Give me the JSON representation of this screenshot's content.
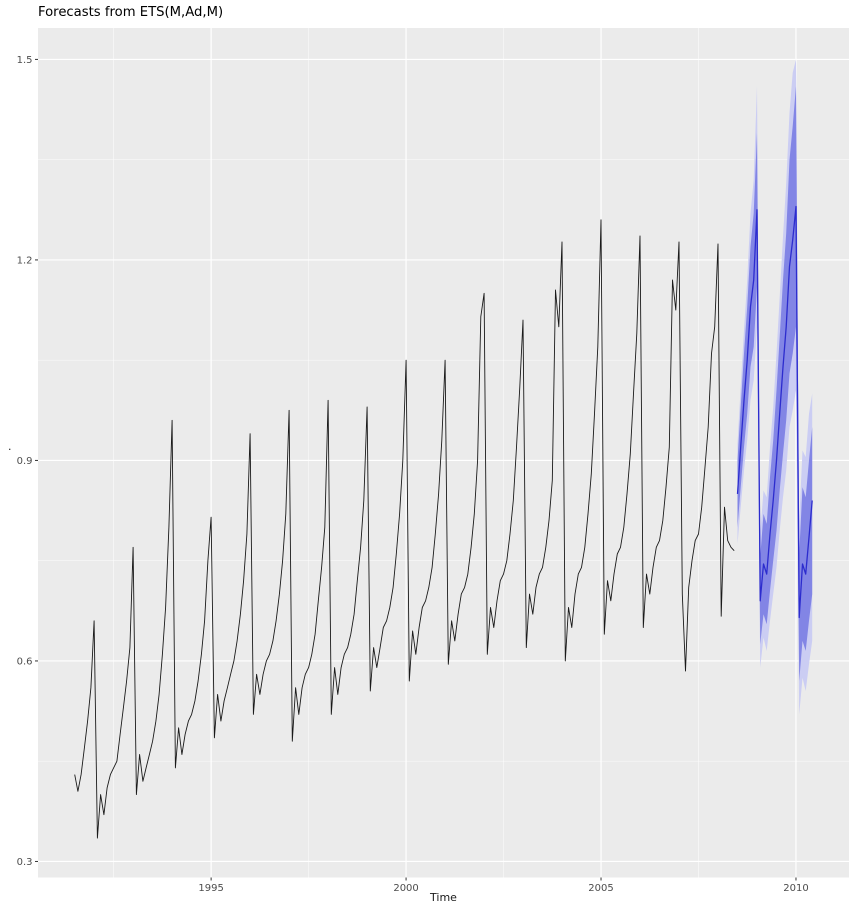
{
  "page": {
    "title": "Forecasts from ETS(M,Ad,M)"
  },
  "chart_data": {
    "type": "line",
    "title": "Forecasts from ETS(M,Ad,M)",
    "xlabel": "Time",
    "ylabel": ".",
    "legend": "none",
    "grid": true,
    "xlim": [
      1990.56,
      2011.36
    ],
    "ylim": [
      0.276,
      1.547
    ],
    "x_ticks": [
      {
        "value": 1995,
        "label": "1995"
      },
      {
        "value": 2000,
        "label": "2000"
      },
      {
        "value": 2005,
        "label": "2005"
      },
      {
        "value": 2010,
        "label": "2010"
      }
    ],
    "y_ticks": [
      {
        "value": 0.3,
        "label": "0.3"
      },
      {
        "value": 0.6,
        "label": "0.6"
      },
      {
        "value": 0.9,
        "label": "0.9"
      },
      {
        "value": 1.2,
        "label": "1.2"
      },
      {
        "value": 1.5,
        "label": "1.5"
      }
    ],
    "history": {
      "start": 1991.5,
      "frequency": 12,
      "values": [
        0.43,
        0.405,
        0.43,
        0.47,
        0.51,
        0.56,
        0.66,
        0.335,
        0.4,
        0.37,
        0.41,
        0.43,
        0.44,
        0.45,
        0.49,
        0.53,
        0.57,
        0.62,
        0.77,
        0.4,
        0.46,
        0.42,
        0.44,
        0.46,
        0.48,
        0.51,
        0.55,
        0.61,
        0.68,
        0.8,
        0.96,
        0.44,
        0.5,
        0.46,
        0.49,
        0.51,
        0.52,
        0.54,
        0.57,
        0.61,
        0.66,
        0.75,
        0.815,
        0.485,
        0.55,
        0.51,
        0.54,
        0.56,
        0.58,
        0.6,
        0.63,
        0.67,
        0.72,
        0.79,
        0.94,
        0.52,
        0.58,
        0.55,
        0.58,
        0.6,
        0.61,
        0.63,
        0.66,
        0.7,
        0.75,
        0.82,
        0.975,
        0.48,
        0.56,
        0.52,
        0.56,
        0.58,
        0.59,
        0.61,
        0.64,
        0.69,
        0.74,
        0.8,
        0.99,
        0.52,
        0.59,
        0.55,
        0.59,
        0.61,
        0.62,
        0.64,
        0.67,
        0.72,
        0.77,
        0.84,
        0.98,
        0.555,
        0.62,
        0.59,
        0.62,
        0.65,
        0.66,
        0.68,
        0.71,
        0.76,
        0.82,
        0.9,
        1.05,
        0.57,
        0.645,
        0.61,
        0.65,
        0.68,
        0.69,
        0.71,
        0.74,
        0.79,
        0.85,
        0.93,
        1.05,
        0.595,
        0.66,
        0.63,
        0.67,
        0.7,
        0.71,
        0.73,
        0.77,
        0.82,
        0.9,
        1.115,
        1.15,
        0.61,
        0.68,
        0.65,
        0.69,
        0.72,
        0.73,
        0.75,
        0.79,
        0.84,
        0.92,
        1.01,
        1.11,
        0.62,
        0.7,
        0.67,
        0.71,
        0.73,
        0.74,
        0.77,
        0.81,
        0.87,
        1.155,
        1.1,
        1.227,
        0.6,
        0.68,
        0.65,
        0.7,
        0.73,
        0.74,
        0.77,
        0.82,
        0.88,
        0.97,
        1.07,
        1.26,
        0.64,
        0.72,
        0.69,
        0.73,
        0.76,
        0.77,
        0.8,
        0.85,
        0.91,
        1.0,
        1.09,
        1.236,
        0.65,
        0.73,
        0.7,
        0.74,
        0.77,
        0.78,
        0.81,
        0.86,
        0.92,
        1.17,
        1.125,
        1.227,
        0.7,
        0.585,
        0.71,
        0.75,
        0.78,
        0.79,
        0.83,
        0.89,
        0.95,
        1.06,
        1.1,
        1.224,
        0.667,
        0.83,
        0.78,
        0.77,
        0.765
      ]
    },
    "forecast": {
      "start": 2008.5,
      "frequency": 12,
      "levels": [
        80,
        95
      ],
      "mean": [
        0.85,
        0.92,
        0.99,
        1.05,
        1.13,
        1.17,
        1.275,
        0.69,
        0.745,
        0.73,
        0.79,
        0.84,
        0.9,
        0.97,
        1.04,
        1.1,
        1.19,
        1.23,
        1.28,
        0.665,
        0.745,
        0.73,
        0.785,
        0.84
      ],
      "lo80": [
        0.8,
        0.86,
        0.92,
        0.97,
        1.04,
        1.07,
        1.16,
        0.625,
        0.67,
        0.655,
        0.705,
        0.75,
        0.795,
        0.855,
        0.91,
        0.96,
        1.03,
        1.06,
        1.1,
        0.57,
        0.63,
        0.615,
        0.66,
        0.7
      ],
      "hi80": [
        0.9,
        0.98,
        1.06,
        1.13,
        1.22,
        1.27,
        1.39,
        0.755,
        0.82,
        0.805,
        0.875,
        0.93,
        1.005,
        1.085,
        1.17,
        1.24,
        1.35,
        1.4,
        1.46,
        0.76,
        0.86,
        0.845,
        0.9,
        0.95
      ],
      "lo95": [
        0.775,
        0.83,
        0.885,
        0.93,
        0.99,
        1.02,
        1.1,
        0.59,
        0.635,
        0.615,
        0.66,
        0.7,
        0.74,
        0.795,
        0.845,
        0.885,
        0.95,
        0.975,
        1.005,
        0.52,
        0.575,
        0.555,
        0.595,
        0.63
      ],
      "hi95": [
        0.925,
        1.01,
        1.095,
        1.17,
        1.27,
        1.32,
        1.46,
        0.79,
        0.855,
        0.845,
        0.92,
        0.98,
        1.06,
        1.145,
        1.235,
        1.315,
        1.42,
        1.48,
        1.5,
        0.81,
        0.915,
        0.905,
        0.97,
        1.0
      ]
    },
    "colors": {
      "history_line": "#1a1a1a",
      "forecast_line": "#2C2CCE",
      "band_80": "#8285E5",
      "band_95": "#CBCDF3",
      "panel_bg": "#EBEBEB",
      "grid_major": "#FFFFFF",
      "grid_minor": "#FFFFFF",
      "tick_mark": "#333333",
      "tick_label": "#4D4D4D"
    }
  }
}
